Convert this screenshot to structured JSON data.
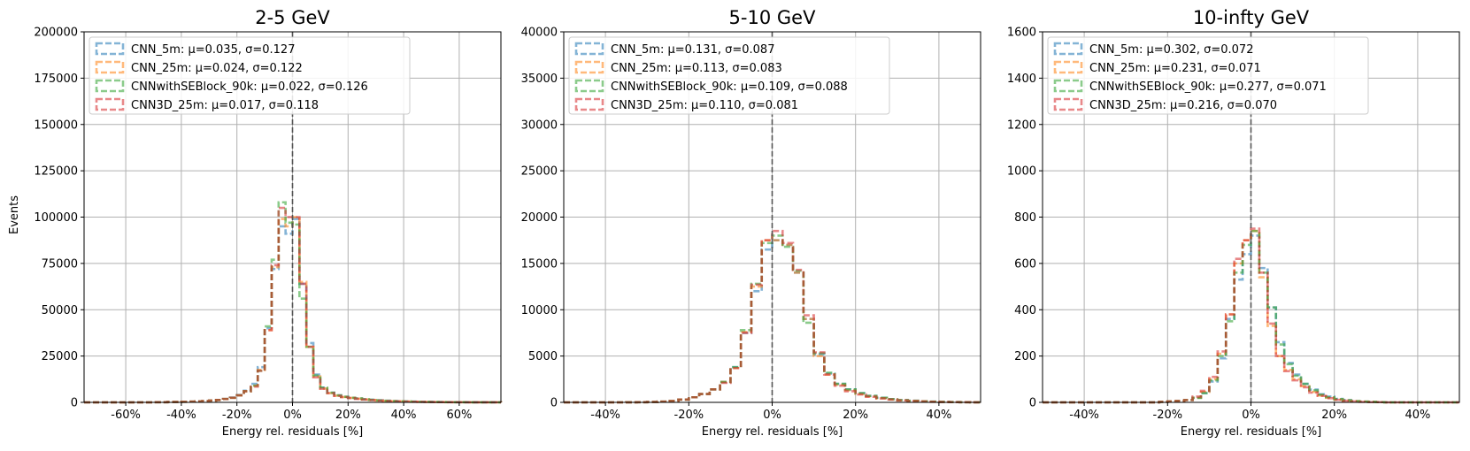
{
  "figure": {
    "ylabel": "Events"
  },
  "chart_data": [
    {
      "type": "histogram",
      "title": "2-5 GeV",
      "xlabel": "Energy rel. residuals [%]",
      "ylabel": "Events",
      "xlim": [
        -75,
        75
      ],
      "ylim": [
        0,
        200000
      ],
      "xticks": [
        -60,
        -40,
        -20,
        0,
        20,
        40,
        60
      ],
      "xtick_labels": [
        "-60%",
        "-40%",
        "-20%",
        "0%",
        "20%",
        "40%",
        "60%"
      ],
      "yticks": [
        0,
        25000,
        50000,
        75000,
        100000,
        125000,
        150000,
        175000,
        200000
      ],
      "ytick_labels": [
        "0",
        "25000",
        "50000",
        "75000",
        "100000",
        "125000",
        "150000",
        "175000",
        "200000"
      ],
      "grid": true,
      "legend_position": "top-left",
      "vline": 0,
      "bin_edges": [
        -75,
        -72.5,
        -70,
        -67.5,
        -65,
        -62.5,
        -60,
        -57.5,
        -55,
        -52.5,
        -50,
        -47.5,
        -45,
        -42.5,
        -40,
        -37.5,
        -35,
        -32.5,
        -30,
        -27.5,
        -25,
        -22.5,
        -20,
        -17.5,
        -15,
        -12.5,
        -10,
        -7.5,
        -5,
        -2.5,
        0,
        2.5,
        5,
        7.5,
        10,
        12.5,
        15,
        17.5,
        20,
        22.5,
        25,
        27.5,
        30,
        32.5,
        35,
        37.5,
        40,
        42.5,
        45,
        47.5,
        50,
        52.5,
        55,
        57.5,
        60,
        62.5,
        65,
        67.5,
        70,
        72.5,
        75
      ],
      "series": [
        {
          "name": "CNN_5m",
          "label": "CNN_5m: μ=0.035, σ=0.127",
          "color": "#1f77b4",
          "values": [
            0,
            0,
            0,
            0,
            0,
            0,
            0,
            0,
            0,
            0,
            100,
            100,
            200,
            200,
            300,
            400,
            500,
            700,
            1000,
            1300,
            1800,
            2600,
            4000,
            6300,
            10000,
            19000,
            40000,
            72000,
            95000,
            91000,
            99000,
            64000,
            32000,
            15000,
            8000,
            5200,
            3800,
            3000,
            2500,
            2100,
            1700,
            1400,
            1100,
            900,
            700,
            600,
            500,
            400,
            300,
            250,
            200,
            150,
            120,
            100,
            80,
            60,
            40,
            30,
            20,
            10
          ]
        },
        {
          "name": "CNN_25m",
          "label": "CNN_25m: μ=0.024, σ=0.122",
          "color": "#ff7f0e",
          "values": [
            0,
            0,
            0,
            0,
            0,
            0,
            0,
            0,
            0,
            0,
            100,
            100,
            200,
            200,
            300,
            400,
            500,
            700,
            1000,
            1300,
            1800,
            2500,
            3800,
            6000,
            9000,
            17500,
            39000,
            73000,
            99000,
            95000,
            100000,
            65000,
            30000,
            14000,
            7500,
            5000,
            3600,
            2900,
            2400,
            2000,
            1600,
            1300,
            1000,
            800,
            650,
            550,
            450,
            350,
            280,
            220,
            180,
            140,
            110,
            90,
            70,
            50,
            35,
            25,
            15,
            10
          ]
        },
        {
          "name": "CNNwithSEBlock_90k",
          "label": "CNNwithSEBlock_90k: μ=0.022, σ=0.126",
          "color": "#2ca02c",
          "values": [
            0,
            0,
            0,
            0,
            0,
            0,
            0,
            0,
            0,
            0,
            100,
            100,
            200,
            200,
            300,
            400,
            500,
            700,
            1000,
            1300,
            1800,
            2500,
            3800,
            6000,
            9000,
            17000,
            41000,
            77000,
            108000,
            97000,
            96000,
            56000,
            30000,
            14500,
            8000,
            5200,
            3800,
            3000,
            2500,
            2100,
            1700,
            1400,
            1100,
            900,
            700,
            600,
            500,
            400,
            300,
            250,
            200,
            150,
            120,
            100,
            80,
            60,
            40,
            30,
            20,
            10
          ]
        },
        {
          "name": "CNN3D_25m",
          "label": "CNN3D_25m: μ=0.017, σ=0.118",
          "color": "#d62728",
          "values": [
            0,
            0,
            0,
            0,
            0,
            0,
            0,
            0,
            0,
            0,
            100,
            100,
            200,
            200,
            300,
            400,
            500,
            700,
            1000,
            1300,
            1800,
            2500,
            3800,
            6000,
            8500,
            17000,
            39000,
            74000,
            105000,
            100000,
            100000,
            64000,
            30000,
            13500,
            7300,
            5000,
            3500,
            2800,
            2300,
            1900,
            1500,
            1200,
            950,
            750,
            600,
            500,
            400,
            320,
            260,
            200,
            160,
            120,
            100,
            80,
            60,
            45,
            30,
            20,
            12,
            8
          ]
        }
      ]
    },
    {
      "type": "histogram",
      "title": "5-10 GeV",
      "xlabel": "Energy rel. residuals [%]",
      "ylabel": "",
      "xlim": [
        -50,
        50
      ],
      "ylim": [
        0,
        40000
      ],
      "xticks": [
        -40,
        -20,
        0,
        20,
        40
      ],
      "xtick_labels": [
        "-40%",
        "-20%",
        "0%",
        "20%",
        "40%"
      ],
      "yticks": [
        0,
        5000,
        10000,
        15000,
        20000,
        25000,
        30000,
        35000,
        40000
      ],
      "ytick_labels": [
        "0",
        "5000",
        "10000",
        "15000",
        "20000",
        "25000",
        "30000",
        "35000",
        "40000"
      ],
      "grid": true,
      "legend_position": "top-left",
      "vline": 0,
      "bin_edges": [
        -50,
        -47.5,
        -45,
        -42.5,
        -40,
        -37.5,
        -35,
        -32.5,
        -30,
        -27.5,
        -25,
        -22.5,
        -20,
        -17.5,
        -15,
        -12.5,
        -10,
        -7.5,
        -5,
        -2.5,
        0,
        2.5,
        5,
        7.5,
        10,
        12.5,
        15,
        17.5,
        20,
        22.5,
        25,
        27.5,
        30,
        32.5,
        35,
        37.5,
        40,
        42.5,
        45,
        47.5,
        50
      ],
      "series": [
        {
          "name": "CNN_5m",
          "label": "CNN_5m: μ=0.131, σ=0.087",
          "color": "#1f77b4",
          "values": [
            0,
            0,
            0,
            0,
            0,
            0,
            10,
            20,
            40,
            80,
            150,
            300,
            550,
            900,
            1400,
            2200,
            3800,
            7500,
            12000,
            16500,
            17500,
            17000,
            14000,
            9000,
            5200,
            3100,
            2000,
            1400,
            1000,
            700,
            500,
            350,
            250,
            180,
            120,
            80,
            50,
            30,
            20,
            10
          ]
        },
        {
          "name": "CNN_25m",
          "label": "CNN_25m: μ=0.113, σ=0.083",
          "color": "#ff7f0e",
          "values": [
            0,
            0,
            0,
            0,
            0,
            0,
            10,
            20,
            40,
            80,
            150,
            300,
            550,
            900,
            1400,
            2200,
            3700,
            7600,
            12500,
            17500,
            17500,
            17000,
            14000,
            9000,
            5000,
            3000,
            1900,
            1300,
            900,
            650,
            450,
            320,
            220,
            160,
            110,
            70,
            45,
            30,
            20,
            10
          ]
        },
        {
          "name": "CNNwithSEBlock_90k",
          "label": "CNNwithSEBlock_90k: μ=0.109, σ=0.088",
          "color": "#2ca02c",
          "values": [
            0,
            0,
            0,
            0,
            0,
            0,
            10,
            20,
            40,
            80,
            150,
            300,
            550,
            900,
            1400,
            2200,
            3800,
            7800,
            12800,
            17200,
            18000,
            16800,
            14200,
            8600,
            5300,
            3200,
            2000,
            1400,
            1000,
            700,
            500,
            350,
            250,
            180,
            120,
            80,
            50,
            30,
            20,
            10
          ]
        },
        {
          "name": "CNN3D_25m",
          "label": "CNN3D_25m: μ=0.110, σ=0.081",
          "color": "#d62728",
          "values": [
            0,
            0,
            0,
            0,
            0,
            0,
            10,
            20,
            40,
            80,
            150,
            300,
            550,
            900,
            1400,
            2100,
            3700,
            7500,
            12700,
            17500,
            18500,
            17200,
            14300,
            9400,
            5400,
            3000,
            1800,
            1200,
            850,
            600,
            420,
            300,
            210,
            150,
            100,
            65,
            40,
            25,
            15,
            8
          ]
        }
      ]
    },
    {
      "type": "histogram",
      "title": "10-infty GeV",
      "xlabel": "Energy rel. residuals [%]",
      "ylabel": "",
      "xlim": [
        -50,
        50
      ],
      "ylim": [
        0,
        1600
      ],
      "xticks": [
        -40,
        -20,
        0,
        20,
        40
      ],
      "xtick_labels": [
        "-40%",
        "-20%",
        "0%",
        "20%",
        "40%"
      ],
      "yticks": [
        0,
        200,
        400,
        600,
        800,
        1000,
        1200,
        1400,
        1600
      ],
      "ytick_labels": [
        "0",
        "200",
        "400",
        "600",
        "800",
        "1000",
        "1200",
        "1400",
        "1600"
      ],
      "grid": true,
      "legend_position": "top-left",
      "vline": 0,
      "bin_edges": [
        -50,
        -48,
        -46,
        -44,
        -42,
        -40,
        -38,
        -36,
        -34,
        -32,
        -30,
        -28,
        -26,
        -24,
        -22,
        -20,
        -18,
        -16,
        -14,
        -12,
        -10,
        -8,
        -6,
        -4,
        -2,
        0,
        2,
        4,
        6,
        8,
        10,
        12,
        14,
        16,
        18,
        20,
        22,
        24,
        26,
        28,
        30,
        32,
        34,
        36,
        38,
        40,
        42,
        44,
        46,
        48,
        50
      ],
      "series": [
        {
          "name": "CNN_5m",
          "label": "CNN_5m: μ=0.302, σ=0.072",
          "color": "#1f77b4",
          "values": [
            0,
            0,
            0,
            0,
            0,
            0,
            0,
            0,
            0,
            0,
            0,
            0,
            0,
            0,
            2,
            4,
            6,
            10,
            20,
            40,
            90,
            190,
            360,
            530,
            640,
            720,
            580,
            410,
            260,
            170,
            120,
            80,
            55,
            35,
            25,
            15,
            10,
            5,
            3,
            2,
            1,
            0,
            0,
            0,
            0,
            0,
            0,
            0,
            0,
            0
          ]
        },
        {
          "name": "CNN_25m",
          "label": "CNN_25m: μ=0.231, σ=0.071",
          "color": "#ff7f0e",
          "values": [
            0,
            0,
            0,
            0,
            0,
            0,
            0,
            0,
            0,
            0,
            0,
            0,
            0,
            0,
            2,
            4,
            6,
            10,
            20,
            45,
            100,
            210,
            380,
            600,
            700,
            740,
            540,
            330,
            200,
            140,
            100,
            70,
            45,
            30,
            20,
            12,
            8,
            5,
            3,
            2,
            1,
            0,
            0,
            0,
            0,
            0,
            0,
            0,
            0,
            0
          ]
        },
        {
          "name": "CNNwithSEBlock_90k",
          "label": "CNNwithSEBlock_90k: μ=0.277, σ=0.071",
          "color": "#2ca02c",
          "values": [
            0,
            0,
            0,
            0,
            0,
            0,
            0,
            0,
            0,
            0,
            0,
            0,
            0,
            0,
            2,
            4,
            6,
            10,
            20,
            40,
            95,
            200,
            350,
            560,
            680,
            740,
            560,
            410,
            250,
            165,
            115,
            80,
            52,
            33,
            22,
            14,
            9,
            5,
            3,
            2,
            1,
            0,
            0,
            0,
            0,
            0,
            0,
            0,
            0,
            0
          ]
        },
        {
          "name": "CNN3D_25m",
          "label": "CNN3D_25m: μ=0.216, σ=0.070",
          "color": "#d62728",
          "values": [
            0,
            0,
            0,
            0,
            0,
            0,
            0,
            0,
            0,
            0,
            0,
            0,
            0,
            0,
            2,
            4,
            6,
            10,
            25,
            50,
            110,
            220,
            380,
            620,
            700,
            750,
            560,
            340,
            200,
            135,
            95,
            65,
            42,
            28,
            18,
            11,
            7,
            4,
            2,
            1,
            1,
            0,
            0,
            0,
            0,
            0,
            0,
            0,
            0,
            0
          ]
        }
      ]
    }
  ]
}
